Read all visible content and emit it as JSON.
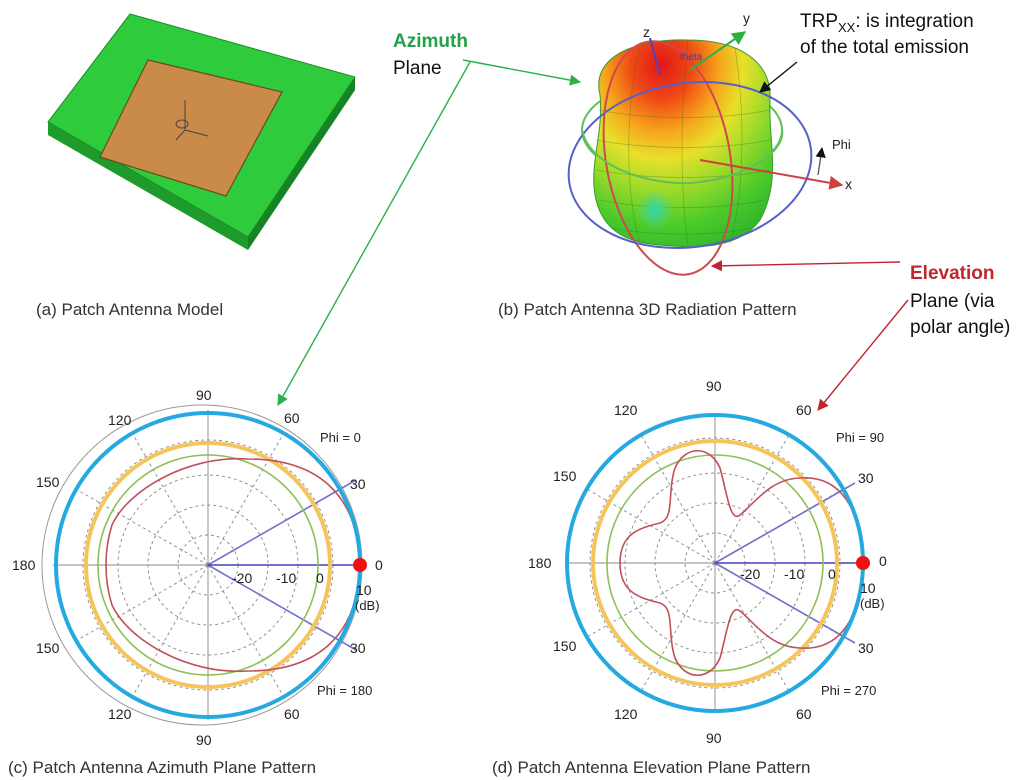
{
  "captions": {
    "a": "(a) Patch Antenna Model",
    "b": "(b) Patch Antenna 3D Radiation Pattern",
    "c": "(c) Patch Antenna Azimuth Plane Pattern",
    "d": "(d) Patch Antenna Elevation Plane Pattern"
  },
  "annotations": {
    "azimuth_title": "Azimuth",
    "azimuth_sub": "Plane",
    "trp_prefix": "TRP",
    "trp_sub": "XX",
    "trp_line1_rest": ": is integration",
    "trp_line2": "of the total emission",
    "elevation_title": "Elevation",
    "elevation_line2": "Plane (via",
    "elevation_line3": "polar angle)"
  },
  "axes3d": {
    "z": "z",
    "y": "y",
    "x": "x",
    "phi": "Phi",
    "theta": "theta"
  },
  "azimuth_plot": {
    "angles": {
      "top": "90",
      "t60": "60",
      "t120": "120",
      "t150": "150",
      "t30": "30",
      "left": "180",
      "right0": "0",
      "b150": "150",
      "b30": "30",
      "b120": "120",
      "b60": "60",
      "bottom": "90"
    },
    "phi_top": "Phi = 0",
    "phi_bottom": "Phi = 180",
    "radial": [
      "-20",
      "-10",
      "0",
      "10"
    ],
    "unit": "(dB)"
  },
  "elevation_plot": {
    "angles": {
      "top": "90",
      "t60": "60",
      "t120": "120",
      "t150": "150",
      "t30": "30",
      "left": "180",
      "right0": "0",
      "b150": "150",
      "b30": "30",
      "b120": "120",
      "b60": "60",
      "bottom": "90"
    },
    "phi_top": "Phi = 90",
    "phi_bottom": "Phi = 270",
    "radial": [
      "-20",
      "-10",
      "0",
      "10"
    ],
    "unit": "(dB)"
  },
  "colors": {
    "board": "#2ecb3c",
    "patch": "#c98a4a",
    "outer_circle": "#25a9e1",
    "trp_circle": "#f5c55a",
    "azimuth_label": "#22a04a",
    "elevation_label": "#c0262d",
    "pattern_curve": "#c0505a",
    "reference_circle": "#8ebf55",
    "grid": "#888888",
    "marker": "#ee1111",
    "arrow_green": "#2bb04b",
    "arrow_red": "#c0262d"
  }
}
